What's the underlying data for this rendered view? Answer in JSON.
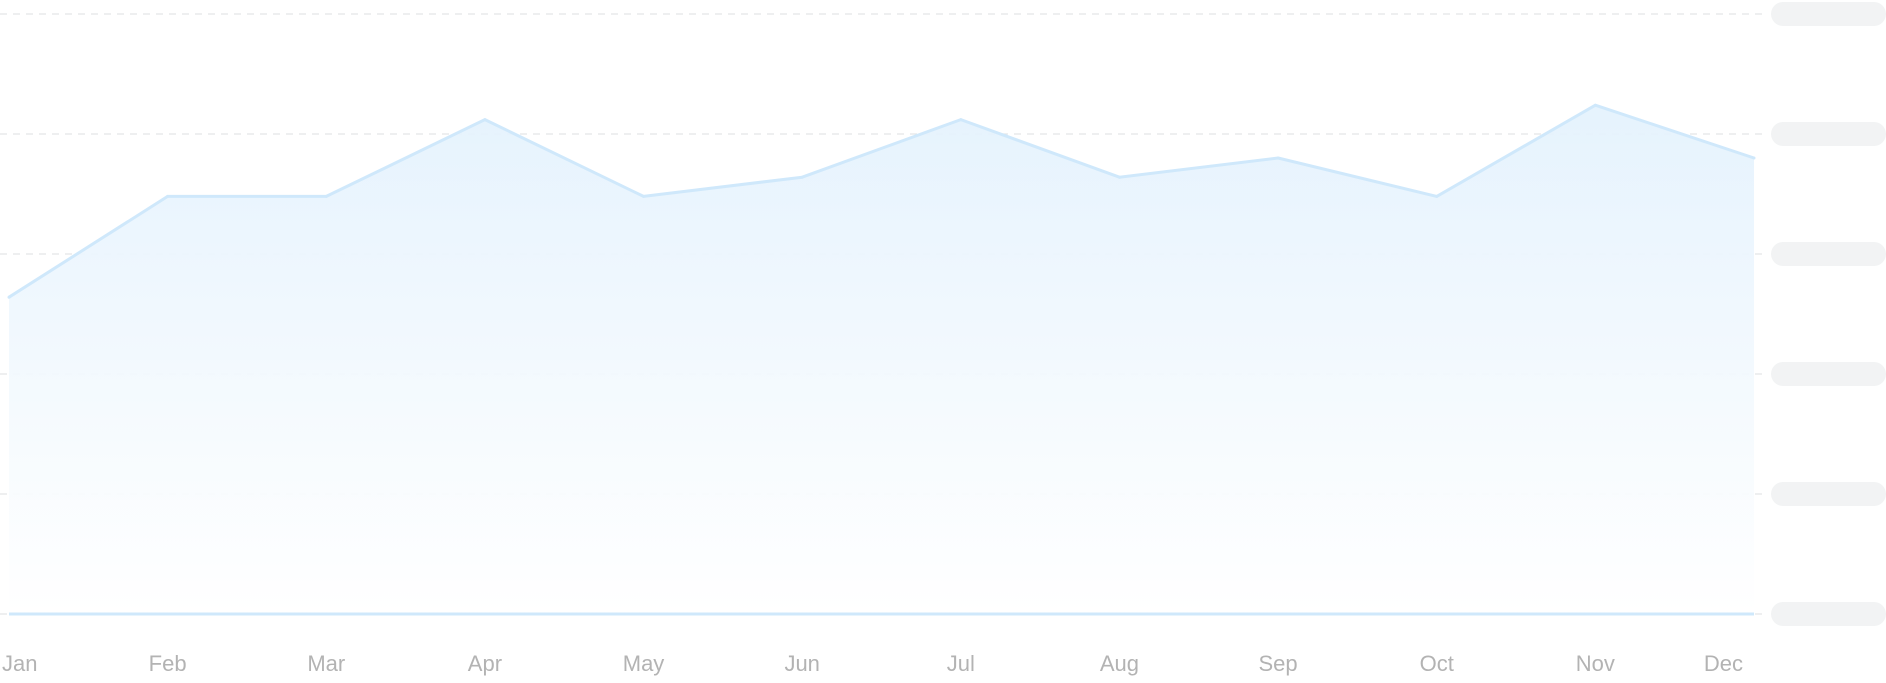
{
  "chart_data": {
    "type": "area",
    "categories": [
      "Jan",
      "Feb",
      "Mar",
      "Apr",
      "May",
      "Jun",
      "Jul",
      "Aug",
      "Sep",
      "Oct",
      "Nov",
      "Dec"
    ],
    "series": [
      {
        "values": [
          66,
          87,
          87,
          103,
          87,
          91,
          103,
          91,
          95,
          87,
          106,
          95
        ]
      }
    ],
    "ylim": [
      0,
      125
    ],
    "grid": true,
    "y_tick_labels": [
      "",
      "",
      "",
      "",
      "",
      ""
    ],
    "colors": {
      "line": "#cfe8fb",
      "fill_top": "#e4f2fd",
      "fill_bottom": "#ffffff",
      "grid": "#e3e5e8",
      "tick_label": "#b3b3b3",
      "placeholder": "#f2f3f4"
    }
  }
}
